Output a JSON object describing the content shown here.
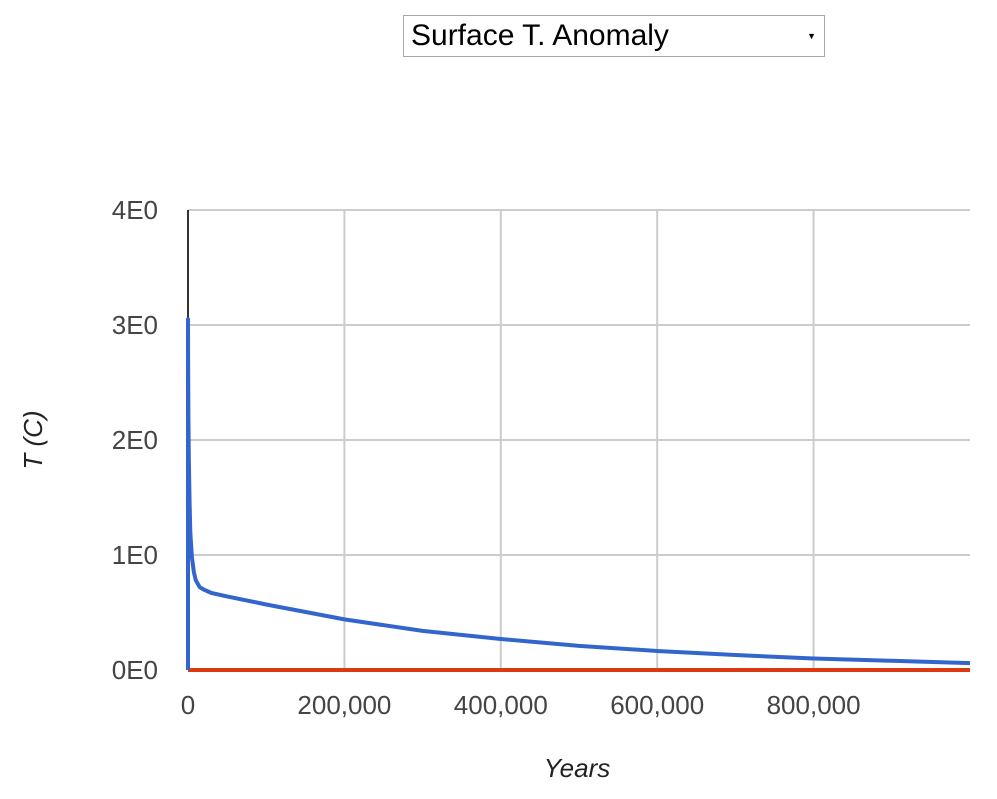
{
  "selector": {
    "selected": "Surface T. Anomaly"
  },
  "chart_data": {
    "type": "line",
    "xlabel": "Years",
    "ylabel": "T (C)",
    "xlim": [
      0,
      1000000
    ],
    "ylim": [
      0,
      4
    ],
    "x_ticks": [
      0,
      200000,
      400000,
      600000,
      800000
    ],
    "x_tick_labels": [
      "0",
      "200,000",
      "400,000",
      "600,000",
      "800,000"
    ],
    "y_ticks": [
      0,
      1,
      2,
      3,
      4
    ],
    "y_tick_labels": [
      "0E0",
      "1E0",
      "2E0",
      "3E0",
      "4E0"
    ],
    "grid": true,
    "series": [
      {
        "color": "#3366cc",
        "x": [
          0,
          1,
          100,
          500,
          1000,
          2000,
          3000,
          5000,
          7500,
          10000,
          15000,
          20000,
          30000,
          50000,
          100000,
          200000,
          300000,
          400000,
          500000,
          600000,
          700000,
          800000,
          900000,
          1000000
        ],
        "y": [
          0,
          3.05,
          2.7,
          2.2,
          1.85,
          1.45,
          1.2,
          0.98,
          0.85,
          0.78,
          0.72,
          0.7,
          0.67,
          0.64,
          0.57,
          0.44,
          0.34,
          0.27,
          0.21,
          0.165,
          0.13,
          0.1,
          0.08,
          0.06
        ]
      },
      {
        "color": "#dc3912",
        "x": [
          0,
          1000000
        ],
        "y": [
          0,
          0
        ]
      }
    ],
    "colors": {
      "grid": "#cccccc",
      "zero_axis": "#333333"
    }
  }
}
